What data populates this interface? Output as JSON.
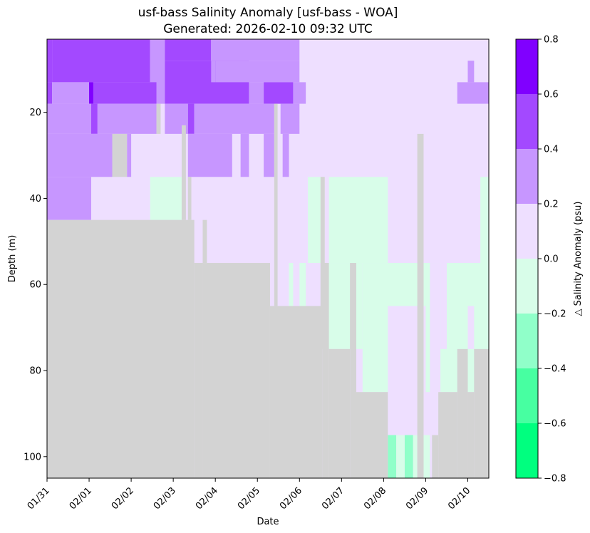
{
  "chart_data": {
    "type": "heatmap",
    "title_line1": "usf-bass Salinity Anomaly [usf-bass - WOA]",
    "title_line2": "Generated: 2026-02-10 09:32 UTC",
    "xlabel": "Date",
    "ylabel": "Depth (m)",
    "colorbar_label": "△ Salinity Anomaly (psu)",
    "x_ticks": [
      "01/31",
      "02/01",
      "02/02",
      "02/03",
      "02/04",
      "02/05",
      "02/06",
      "02/07",
      "02/08",
      "02/09",
      "02/10"
    ],
    "x_range_days": [
      0,
      10.5
    ],
    "y_ticks": [
      20,
      40,
      60,
      80,
      100
    ],
    "y_range": [
      3,
      105
    ],
    "y_inverted": true,
    "color_levels": [
      -0.8,
      -0.6,
      -0.4,
      -0.2,
      0.0,
      0.2,
      0.4,
      0.6,
      0.8
    ],
    "level_colors": [
      "#00ff7f",
      "#47ffa1",
      "#90ffc9",
      "#d8fde9",
      "#eedfff",
      "#c796ff",
      "#a349ff",
      "#8000ff"
    ],
    "no_data_color": "#d3d3d3",
    "background_level": 0.1,
    "profile_cells": [
      {
        "x": [
          0.0,
          0.12
        ],
        "depth": [
          3,
          13
        ],
        "value": 0.5
      },
      {
        "x": [
          0.12,
          2.45
        ],
        "depth": [
          3,
          13
        ],
        "value": 0.5
      },
      {
        "x": [
          2.45,
          2.8
        ],
        "depth": [
          3,
          18
        ],
        "value": 0.3
      },
      {
        "x": [
          2.8,
          3.9
        ],
        "depth": [
          3,
          8
        ],
        "value": 0.5
      },
      {
        "x": [
          3.9,
          6.0
        ],
        "depth": [
          3,
          8
        ],
        "value": 0.3
      },
      {
        "x": [
          0.0,
          0.12
        ],
        "depth": [
          13,
          18
        ],
        "value": 0.5
      },
      {
        "x": [
          0.12,
          1.0
        ],
        "depth": [
          13,
          18
        ],
        "value": 0.3
      },
      {
        "x": [
          1.0,
          1.1
        ],
        "depth": [
          13,
          18
        ],
        "value": 0.7
      },
      {
        "x": [
          1.1,
          2.6
        ],
        "depth": [
          13,
          18
        ],
        "value": 0.5
      },
      {
        "x": [
          2.8,
          4.8
        ],
        "depth": [
          8,
          18
        ],
        "value": 0.5
      },
      {
        "x": [
          3.9,
          4.0
        ],
        "depth": [
          8,
          13
        ],
        "value": 0.3
      },
      {
        "x": [
          4.0,
          6.0
        ],
        "depth": [
          8,
          13
        ],
        "value": 0.3
      },
      {
        "x": [
          4.8,
          5.15
        ],
        "depth": [
          13,
          18
        ],
        "value": 0.3
      },
      {
        "x": [
          5.15,
          5.85
        ],
        "depth": [
          13,
          18
        ],
        "value": 0.5
      },
      {
        "x": [
          5.85,
          6.15
        ],
        "depth": [
          13,
          18
        ],
        "value": 0.3
      },
      {
        "x": [
          9.75,
          10.5
        ],
        "depth": [
          13,
          18
        ],
        "value": 0.3
      },
      {
        "x": [
          10.0,
          10.15
        ],
        "depth": [
          8,
          13
        ],
        "value": 0.3
      },
      {
        "x": [
          0.0,
          1.05
        ],
        "depth": [
          18,
          25
        ],
        "value": 0.3
      },
      {
        "x": [
          1.05,
          1.2
        ],
        "depth": [
          18,
          25
        ],
        "value": 0.5
      },
      {
        "x": [
          1.2,
          2.6
        ],
        "depth": [
          18,
          25
        ],
        "value": 0.3
      },
      {
        "x": [
          2.8,
          3.35
        ],
        "depth": [
          18,
          25
        ],
        "value": 0.3
      },
      {
        "x": [
          3.35,
          3.5
        ],
        "depth": [
          18,
          25
        ],
        "value": 0.5
      },
      {
        "x": [
          3.5,
          5.4
        ],
        "depth": [
          18,
          25
        ],
        "value": 0.3
      },
      {
        "x": [
          5.55,
          6.0
        ],
        "depth": [
          18,
          25
        ],
        "value": 0.3
      },
      {
        "x": [
          0.0,
          1.55
        ],
        "depth": [
          25,
          35
        ],
        "value": 0.3
      },
      {
        "x": [
          1.9,
          2.0
        ],
        "depth": [
          25,
          35
        ],
        "value": 0.3
      },
      {
        "x": [
          3.35,
          4.4
        ],
        "depth": [
          25,
          35
        ],
        "value": 0.3
      },
      {
        "x": [
          4.6,
          4.8
        ],
        "depth": [
          25,
          35
        ],
        "value": 0.3
      },
      {
        "x": [
          5.15,
          5.4
        ],
        "depth": [
          25,
          35
        ],
        "value": 0.3
      },
      {
        "x": [
          5.6,
          5.75
        ],
        "depth": [
          25,
          35
        ],
        "value": 0.3
      },
      {
        "x": [
          0.0,
          1.05
        ],
        "depth": [
          35,
          45
        ],
        "value": 0.3
      },
      {
        "x": [
          2.45,
          3.2
        ],
        "depth": [
          35,
          45
        ],
        "value": -0.1
      },
      {
        "x": [
          6.2,
          6.6
        ],
        "depth": [
          35,
          55
        ],
        "value": -0.1
      },
      {
        "x": [
          6.7,
          8.1
        ],
        "depth": [
          35,
          55
        ],
        "value": -0.1
      },
      {
        "x": [
          10.3,
          10.5
        ],
        "depth": [
          35,
          75
        ],
        "value": -0.1
      },
      {
        "x": [
          5.75,
          5.85
        ],
        "depth": [
          55,
          65
        ],
        "value": -0.1
      },
      {
        "x": [
          6.0,
          6.15
        ],
        "depth": [
          55,
          65
        ],
        "value": -0.1
      },
      {
        "x": [
          7.5,
          10.5
        ],
        "depth": [
          55,
          85
        ],
        "value": -0.1
      },
      {
        "x": [
          6.55,
          7.5
        ],
        "depth": [
          55,
          75
        ],
        "value": -0.1
      },
      {
        "x": [
          8.1,
          9.0
        ],
        "depth": [
          65,
          100
        ],
        "value": 0.1
      },
      {
        "x": [
          8.1,
          8.3
        ],
        "depth": [
          95,
          105
        ],
        "value": -0.3
      },
      {
        "x": [
          8.5,
          8.7
        ],
        "depth": [
          95,
          105
        ],
        "value": -0.3
      },
      {
        "x": [
          8.3,
          8.5
        ],
        "depth": [
          95,
          105
        ],
        "value": -0.1
      },
      {
        "x": [
          8.7,
          8.8
        ],
        "depth": [
          95,
          105
        ],
        "value": -0.1
      },
      {
        "x": [
          8.95,
          9.1
        ],
        "depth": [
          95,
          105
        ],
        "value": -0.1
      },
      {
        "x": [
          9.1,
          9.35
        ],
        "depth": [
          55,
          95
        ],
        "value": 0.1
      },
      {
        "x": [
          9.35,
          9.5
        ],
        "depth": [
          55,
          75
        ],
        "value": 0.1
      },
      {
        "x": [
          9.6,
          9.75
        ],
        "depth": [
          75,
          85
        ],
        "value": -0.1
      },
      {
        "x": [
          10.0,
          10.15
        ],
        "depth": [
          65,
          75
        ],
        "value": 0.1
      }
    ],
    "no_data_regions": [
      {
        "x": [
          0.0,
          3.5
        ],
        "depth": [
          45,
          105
        ]
      },
      {
        "x": [
          3.5,
          3.7
        ],
        "depth": [
          55,
          105
        ]
      },
      {
        "x": [
          3.7,
          5.3
        ],
        "depth": [
          55,
          105
        ]
      },
      {
        "x": [
          3.7,
          3.8
        ],
        "depth": [
          45,
          55
        ]
      },
      {
        "x": [
          5.3,
          5.75
        ],
        "depth": [
          65,
          105
        ]
      },
      {
        "x": [
          5.75,
          6.55
        ],
        "depth": [
          65,
          105
        ]
      },
      {
        "x": [
          6.55,
          6.7
        ],
        "depth": [
          55,
          105
        ]
      },
      {
        "x": [
          6.7,
          7.2
        ],
        "depth": [
          75,
          105
        ]
      },
      {
        "x": [
          7.2,
          7.35
        ],
        "depth": [
          55,
          105
        ]
      },
      {
        "x": [
          7.35,
          8.1
        ],
        "depth": [
          85,
          105
        ]
      },
      {
        "x": [
          6.5,
          6.6
        ],
        "depth": [
          35,
          75
        ]
      },
      {
        "x": [
          3.2,
          3.3
        ],
        "depth": [
          23,
          45
        ]
      },
      {
        "x": [
          3.35,
          3.43
        ],
        "depth": [
          35,
          45
        ]
      },
      {
        "x": [
          5.4,
          5.48
        ],
        "depth": [
          18,
          65
        ]
      },
      {
        "x": [
          2.6,
          2.7
        ],
        "depth": [
          18,
          25
        ]
      },
      {
        "x": [
          1.55,
          1.9
        ],
        "depth": [
          25,
          35
        ]
      },
      {
        "x": [
          8.8,
          8.95
        ],
        "depth": [
          25,
          105
        ]
      },
      {
        "x": [
          9.15,
          9.3
        ],
        "depth": [
          95,
          105
        ]
      },
      {
        "x": [
          9.3,
          9.75
        ],
        "depth": [
          85,
          105
        ]
      },
      {
        "x": [
          9.75,
          10.0
        ],
        "depth": [
          75,
          105
        ]
      },
      {
        "x": [
          10.15,
          10.5
        ],
        "depth": [
          75,
          105
        ]
      },
      {
        "x": [
          10.0,
          10.15
        ],
        "depth": [
          85,
          105
        ]
      }
    ]
  }
}
